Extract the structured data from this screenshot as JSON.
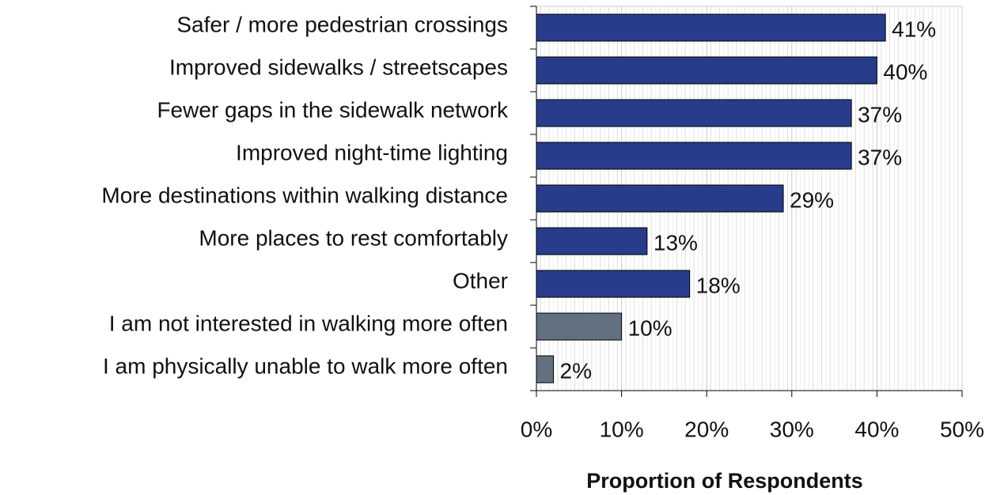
{
  "chart_data": {
    "type": "bar",
    "orientation": "horizontal",
    "categories": [
      "Safer / more pedestrian crossings",
      "Improved sidewalks / streetscapes",
      "Fewer gaps in the sidewalk network",
      "Improved night-time lighting",
      "More destinations within walking distance",
      "More places to rest comfortably",
      "Other",
      "I am not interested in walking more often",
      "I am physically unable to walk more often"
    ],
    "values": [
      41,
      40,
      37,
      37,
      29,
      13,
      18,
      10,
      2
    ],
    "value_labels": [
      "41%",
      "40%",
      "37%",
      "37%",
      "29%",
      "13%",
      "18%",
      "10%",
      "2%"
    ],
    "colors": [
      "#283c8c",
      "#283c8c",
      "#283c8c",
      "#283c8c",
      "#283c8c",
      "#283c8c",
      "#283c8c",
      "#627080",
      "#627080"
    ],
    "xlabel": "Proportion of Respondents",
    "xlim": [
      0,
      50
    ],
    "xticks": [
      {
        "value": 0,
        "label": "0%"
      },
      {
        "value": 10,
        "label": "10%"
      },
      {
        "value": 20,
        "label": "20%"
      },
      {
        "value": 30,
        "label": "30%"
      },
      {
        "value": 40,
        "label": "40%"
      },
      {
        "value": 50,
        "label": "50%"
      }
    ],
    "grid": true
  }
}
